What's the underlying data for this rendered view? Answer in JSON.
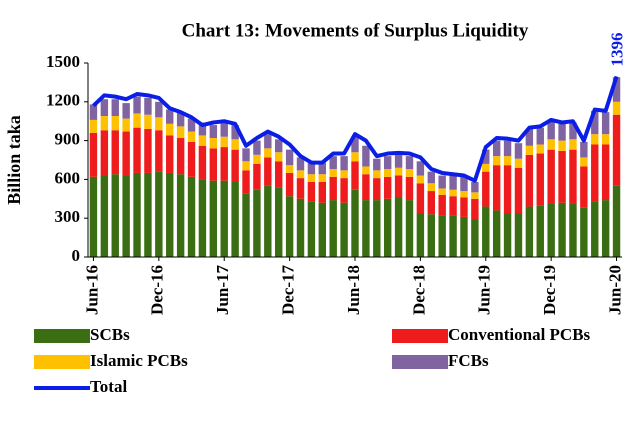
{
  "chart_data": {
    "type": "bar",
    "stacked": true,
    "title": "Chart 13: Movements of Surplus Liquidity",
    "y_label": "Billion taka",
    "categories": [
      "Jun-16",
      null,
      null,
      null,
      null,
      null,
      "Dec-16",
      null,
      null,
      null,
      null,
      null,
      "Jun-17",
      null,
      null,
      null,
      null,
      null,
      "Dec-17",
      null,
      null,
      null,
      null,
      null,
      "Jun-18",
      null,
      null,
      null,
      null,
      null,
      "Dec-18",
      null,
      null,
      null,
      null,
      null,
      "Jun-19",
      null,
      null,
      null,
      null,
      null,
      "Dec-19",
      null,
      null,
      null,
      null,
      null,
      "Jun-20"
    ],
    "ylim": [
      0,
      1500
    ],
    "yticks": [
      0,
      300,
      600,
      900,
      1200,
      1500
    ],
    "series": [
      {
        "name": "SCBs",
        "color": "#3b6e12",
        "values": [
          620,
          630,
          640,
          630,
          650,
          650,
          660,
          650,
          640,
          620,
          600,
          590,
          590,
          580,
          490,
          520,
          550,
          540,
          470,
          450,
          430,
          420,
          440,
          420,
          520,
          440,
          440,
          450,
          460,
          440,
          340,
          330,
          320,
          320,
          310,
          290,
          390,
          360,
          340,
          340,
          390,
          400,
          410,
          420,
          410,
          380,
          430,
          440,
          550
        ]
      },
      {
        "name": "Conventional PCBs",
        "color": "#ee1c1c",
        "values": [
          340,
          350,
          340,
          340,
          350,
          340,
          320,
          290,
          280,
          270,
          260,
          250,
          260,
          250,
          180,
          200,
          220,
          200,
          180,
          160,
          150,
          160,
          180,
          190,
          220,
          200,
          170,
          170,
          170,
          180,
          230,
          180,
          160,
          150,
          150,
          160,
          270,
          350,
          370,
          350,
          400,
          400,
          420,
          400,
          420,
          320,
          440,
          430,
          550
        ]
      },
      {
        "name": "Islamic PCBs",
        "color": "#ffc000",
        "values": [
          100,
          110,
          110,
          100,
          110,
          110,
          100,
          90,
          90,
          80,
          80,
          80,
          80,
          80,
          70,
          70,
          70,
          70,
          60,
          60,
          60,
          60,
          60,
          60,
          70,
          60,
          60,
          60,
          60,
          60,
          60,
          60,
          50,
          50,
          50,
          50,
          60,
          70,
          70,
          70,
          70,
          70,
          80,
          80,
          80,
          70,
          80,
          80,
          100
        ]
      },
      {
        "name": "FCBs",
        "color": "#8064a2",
        "values": [
          120,
          130,
          130,
          120,
          130,
          130,
          120,
          110,
          110,
          100,
          100,
          100,
          110,
          110,
          100,
          110,
          110,
          100,
          120,
          100,
          90,
          90,
          100,
          110,
          120,
          160,
          90,
          100,
          100,
          100,
          110,
          90,
          100,
          110,
          110,
          80,
          110,
          120,
          120,
          120,
          130,
          130,
          140,
          130,
          130,
          120,
          180,
          170,
          190
        ]
      },
      {
        "name": "Total",
        "type": "line",
        "color": "#0a1ee8",
        "values": [
          1170,
          1250,
          1240,
          1220,
          1260,
          1250,
          1230,
          1150,
          1120,
          1080,
          1020,
          1040,
          1050,
          1030,
          860,
          920,
          970,
          930,
          870,
          780,
          730,
          730,
          800,
          800,
          950,
          900,
          780,
          800,
          805,
          800,
          770,
          680,
          650,
          640,
          630,
          590,
          850,
          920,
          915,
          900,
          1000,
          1010,
          1060,
          1040,
          1050,
          900,
          1140,
          1130,
          1396
        ],
        "value_labels": [
          null,
          null,
          null,
          null,
          null,
          null,
          null,
          null,
          null,
          null,
          null,
          null,
          null,
          null,
          null,
          null,
          null,
          null,
          null,
          null,
          null,
          null,
          null,
          null,
          null,
          null,
          null,
          null,
          null,
          null,
          null,
          null,
          null,
          null,
          null,
          null,
          null,
          null,
          null,
          null,
          null,
          null,
          null,
          null,
          null,
          null,
          null,
          null,
          "1396"
        ]
      }
    ]
  }
}
